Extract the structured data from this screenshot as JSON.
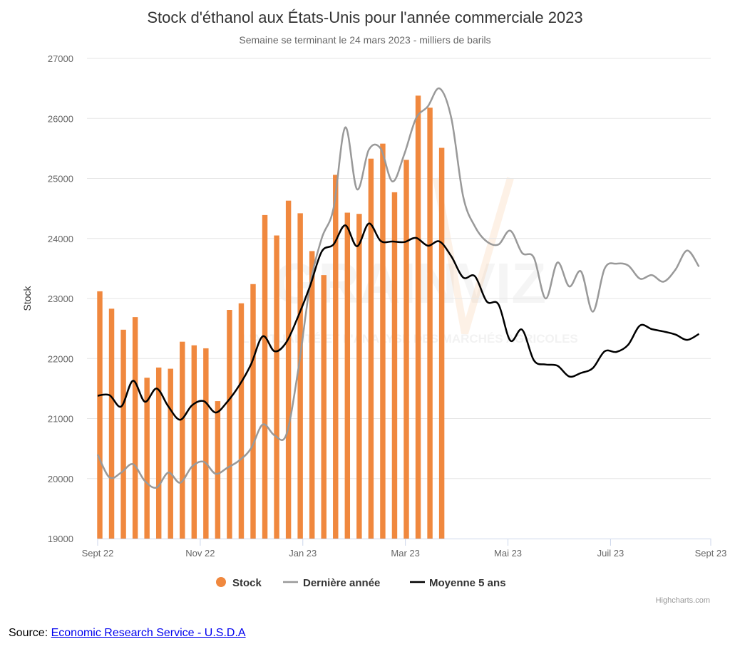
{
  "source": {
    "prefix": "Source: ",
    "link_text": "Economic Research Service - U.S.D.A"
  },
  "credits": "Highcharts.com",
  "watermark": {
    "main": "GRAINVIZ",
    "sub": "L'ACTUALITÉ ET L'ANALYSE DES MARCHÉS AGRICOLES"
  },
  "chart_data": {
    "type": "bar",
    "title": "Stock d'éthanol aux États-Unis pour l'année commerciale 2023",
    "subtitle": "Semaine se terminant le 24 mars 2023 - milliers de barils",
    "ylabel": "Stock",
    "xlabel": "",
    "ylim": [
      19000,
      27000
    ],
    "yticks": [
      19000,
      20000,
      21000,
      22000,
      23000,
      24000,
      25000,
      26000,
      27000
    ],
    "x_range_weeks": [
      0,
      52
    ],
    "x_ticks": [
      {
        "label": "Sept 22",
        "week": 0
      },
      {
        "label": "Nov 22",
        "week": 8.7
      },
      {
        "label": "Jan 23",
        "week": 17.4
      },
      {
        "label": "Mar 23",
        "week": 26.1
      },
      {
        "label": "Mai 23",
        "week": 34.8
      },
      {
        "label": "Juil 23",
        "week": 43.5
      },
      {
        "label": "Sept 23",
        "week": 52
      }
    ],
    "legend_position": "bottom-center",
    "grid": true,
    "colors": {
      "stock": "#f0883e",
      "last_year": "#999999",
      "avg5": "#000000",
      "grid": "#e6e6e6"
    },
    "series": [
      {
        "name": "Stock",
        "type": "bar",
        "values": [
          23120,
          22830,
          22480,
          22690,
          21680,
          21850,
          21830,
          22280,
          22220,
          22170,
          21290,
          22810,
          22920,
          23240,
          24390,
          24050,
          24630,
          24420,
          23790,
          23390,
          25060,
          24430,
          24410,
          25330,
          25580,
          24770,
          25310,
          26380,
          26180,
          25510
        ]
      },
      {
        "name": "Dernière année",
        "type": "line",
        "values": [
          20400,
          20020,
          20100,
          20240,
          19960,
          19850,
          20100,
          19930,
          20200,
          20280,
          20080,
          20180,
          20300,
          20500,
          20900,
          20720,
          20730,
          21800,
          23200,
          24000,
          24500,
          25850,
          24820,
          25480,
          25500,
          24950,
          25400,
          26000,
          26200,
          26500,
          26000,
          24700,
          24200,
          23950,
          23900,
          24130,
          23760,
          23680,
          23000,
          23600,
          23200,
          23450,
          22780,
          23500,
          23580,
          23550,
          23330,
          23390,
          23280,
          23480,
          23800,
          23530
        ]
      },
      {
        "name": "Moyenne 5 ans",
        "type": "line",
        "values": [
          21380,
          21390,
          21200,
          21630,
          21280,
          21500,
          21200,
          20980,
          21220,
          21290,
          21100,
          21280,
          21550,
          21900,
          22370,
          22120,
          22270,
          22700,
          23200,
          23780,
          23900,
          24220,
          23870,
          24250,
          23960,
          23950,
          23940,
          24010,
          23880,
          23950,
          23700,
          23350,
          23370,
          22950,
          22900,
          22300,
          22480,
          21970,
          21900,
          21880,
          21700,
          21760,
          21840,
          22120,
          22110,
          22230,
          22550,
          22490,
          22450,
          22400,
          22310,
          22410
        ]
      }
    ]
  }
}
